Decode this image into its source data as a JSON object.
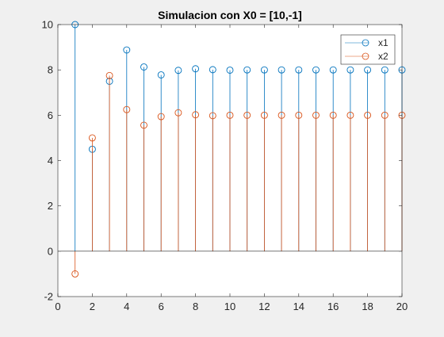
{
  "chart_data": {
    "type": "stem",
    "title": "Simulacion con X0 = [10,-1]",
    "xlabel": "",
    "ylabel": "",
    "xlim": [
      0,
      20
    ],
    "ylim": [
      -2,
      10
    ],
    "xticks": [
      0,
      2,
      4,
      6,
      8,
      10,
      12,
      14,
      16,
      18,
      20
    ],
    "yticks": [
      -2,
      0,
      2,
      4,
      6,
      8,
      10
    ],
    "grid": false,
    "legend_placement": "top-right",
    "x": [
      1,
      2,
      3,
      4,
      5,
      6,
      7,
      8,
      9,
      10,
      11,
      12,
      13,
      14,
      15,
      16,
      17,
      18,
      19,
      20
    ],
    "series": [
      {
        "name": "x1",
        "color": "#0072BD",
        "values": [
          10,
          4.5,
          7.5,
          8.88,
          8.13,
          7.78,
          7.98,
          8.05,
          8.01,
          7.99,
          8.0,
          8.0,
          8.0,
          8.0,
          8.0,
          8.0,
          8.0,
          8.0,
          8.0,
          8.0
        ]
      },
      {
        "name": "x2",
        "color": "#D95319",
        "values": [
          -1,
          5.0,
          7.75,
          6.25,
          5.56,
          5.94,
          6.11,
          6.02,
          5.98,
          6.0,
          6.0,
          6.0,
          6.0,
          6.0,
          6.0,
          6.0,
          6.0,
          6.0,
          6.0,
          6.0
        ]
      }
    ]
  }
}
